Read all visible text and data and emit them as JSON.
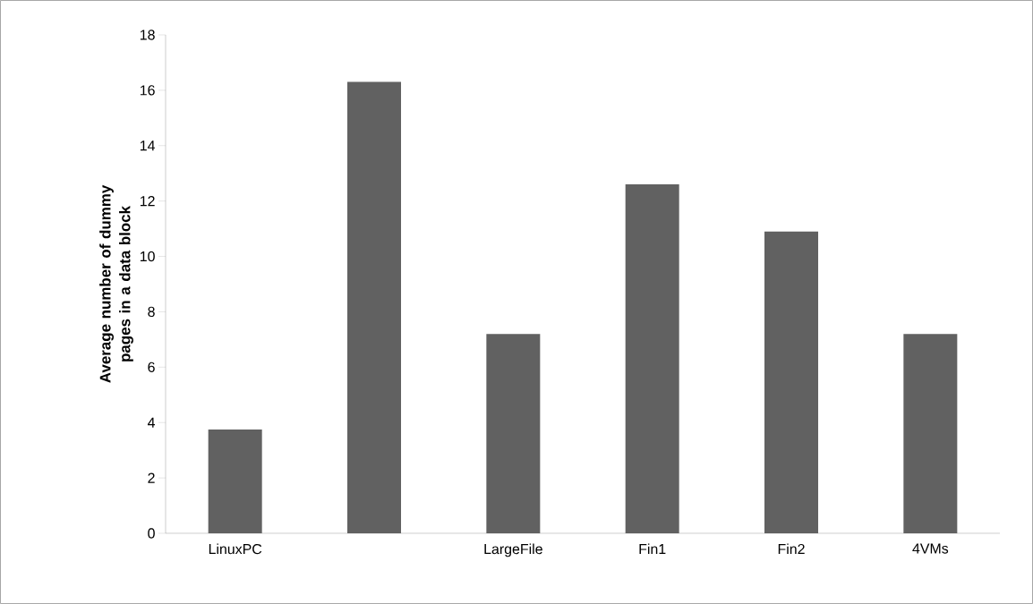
{
  "chart_data": {
    "type": "bar",
    "ylabel": "Average number of dummy pages in a data block",
    "categories": [
      "LinuxPC",
      null,
      "LargeFile",
      "Fin1",
      "Fin2",
      "4VMs"
    ],
    "values": [
      3.75,
      16.3,
      7.2,
      12.6,
      10.9,
      7.2
    ],
    "color": "#616161",
    "ylim": [
      0,
      18
    ],
    "yticks": [
      0,
      2,
      4,
      6,
      8,
      10,
      12,
      14,
      16,
      18
    ],
    "grid": false
  }
}
